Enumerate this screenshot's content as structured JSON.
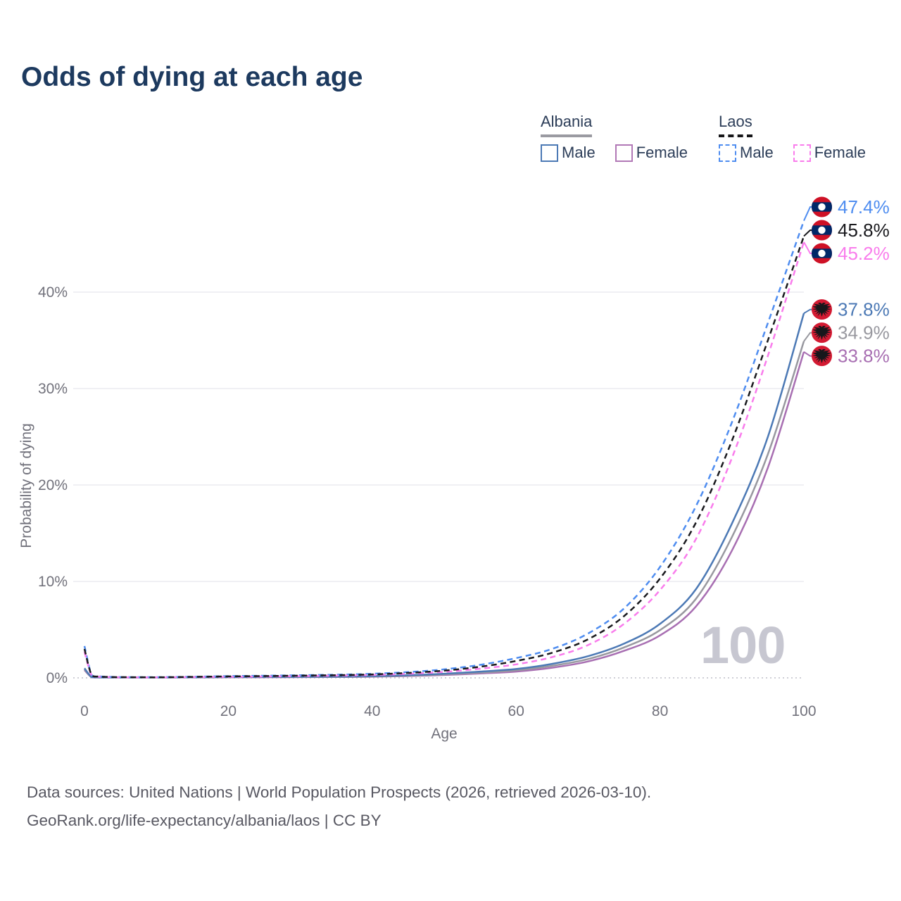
{
  "title": "Odds of dying at each age",
  "watermark": "100",
  "legend": {
    "groups": [
      {
        "name": "Albania",
        "line_style": "solid",
        "underline_color": "#9a9aa1",
        "items": [
          {
            "label": "Male",
            "color": "#4c79b5",
            "dashed": false
          },
          {
            "label": "Female",
            "color": "#b178b6",
            "dashed": false
          }
        ]
      },
      {
        "name": "Laos",
        "line_style": "dashed",
        "underline_color": "#161619",
        "items": [
          {
            "label": "Male",
            "color": "#4f8df0",
            "dashed": true
          },
          {
            "label": "Female",
            "color": "#f97cec",
            "dashed": true
          }
        ]
      }
    ]
  },
  "footer": {
    "line1": "Data sources: United Nations | World Population Prospects (2026, retrieved 2026-03-10).",
    "line2": "GeoRank.org/life-expectancy/albania/laos | CC BY"
  },
  "flag_colors": {
    "laos_red": "#ce1126",
    "laos_blue": "#002868",
    "albania_red": "#d31a32",
    "eagle_black": "#17171b",
    "white": "#ffffff"
  },
  "chart_data": {
    "type": "line",
    "title": "Odds of dying at each age",
    "xlabel": "Age",
    "ylabel": "Probability of dying",
    "x_ticks": [
      0,
      20,
      40,
      60,
      80,
      100
    ],
    "y_ticks_pct": [
      0,
      10,
      20,
      30,
      40
    ],
    "xlim": [
      0,
      100
    ],
    "ylim_pct": [
      0,
      48
    ],
    "grid": "horizontal",
    "legend_position": "top-right",
    "ages": [
      0,
      1,
      2,
      3,
      5,
      10,
      15,
      20,
      25,
      30,
      35,
      40,
      45,
      50,
      55,
      60,
      65,
      70,
      75,
      80,
      85,
      90,
      95,
      100
    ],
    "series": [
      {
        "id": "albania-female",
        "country": "Albania",
        "sex": "Female",
        "color": "#a86fb2",
        "dashed": false,
        "flag": "albania",
        "end_label": "33.8%",
        "end_value_pct": 33.8,
        "values_pct": [
          0.8,
          0.06,
          0.035,
          0.03,
          0.022,
          0.02,
          0.04,
          0.05,
          0.06,
          0.07,
          0.09,
          0.12,
          0.19,
          0.3,
          0.46,
          0.65,
          1.05,
          1.7,
          2.8,
          4.4,
          7.4,
          13.2,
          21.8,
          33.8
        ]
      },
      {
        "id": "albania-total",
        "country": "Albania",
        "sex": "Both sexes",
        "color": "#98989f",
        "dashed": false,
        "flag": "albania",
        "end_label": "34.9%",
        "end_value_pct": 34.9,
        "values_pct": [
          0.9,
          0.07,
          0.04,
          0.035,
          0.027,
          0.025,
          0.05,
          0.07,
          0.08,
          0.09,
          0.11,
          0.15,
          0.23,
          0.36,
          0.55,
          0.78,
          1.25,
          1.95,
          3.15,
          4.95,
          8.2,
          14.6,
          23.2,
          34.9
        ]
      },
      {
        "id": "albania-male",
        "country": "Albania",
        "sex": "Male",
        "color": "#4c79b5",
        "dashed": false,
        "flag": "albania",
        "end_label": "37.8%",
        "end_value_pct": 37.8,
        "values_pct": [
          1.0,
          0.08,
          0.05,
          0.04,
          0.03,
          0.03,
          0.06,
          0.09,
          0.1,
          0.11,
          0.13,
          0.18,
          0.28,
          0.43,
          0.65,
          0.92,
          1.45,
          2.25,
          3.55,
          5.6,
          9.2,
          16.0,
          25.0,
          37.8
        ]
      },
      {
        "id": "laos-male",
        "country": "Laos",
        "sex": "Male",
        "color": "#4f8df0",
        "dashed": true,
        "flag": "laos",
        "end_label": "47.4%",
        "end_value_pct": 47.4,
        "values_pct": [
          3.3,
          0.3,
          0.16,
          0.12,
          0.08,
          0.07,
          0.12,
          0.18,
          0.22,
          0.27,
          0.33,
          0.42,
          0.6,
          0.88,
          1.35,
          2.05,
          3.0,
          4.6,
          7.2,
          11.5,
          17.8,
          26.5,
          36.8,
          47.4
        ]
      },
      {
        "id": "laos-female",
        "country": "Laos",
        "sex": "Female",
        "color": "#f97cec",
        "dashed": true,
        "flag": "laos",
        "end_label": "45.2%",
        "end_value_pct": 45.2,
        "values_pct": [
          2.7,
          0.24,
          0.12,
          0.09,
          0.06,
          0.05,
          0.08,
          0.11,
          0.14,
          0.18,
          0.23,
          0.3,
          0.42,
          0.62,
          0.95,
          1.4,
          2.15,
          3.4,
          5.6,
          9.1,
          14.4,
          22.8,
          33.4,
          45.2
        ]
      },
      {
        "id": "laos-total",
        "country": "Laos",
        "sex": "Both sexes",
        "color": "#1a1a1e",
        "dashed": true,
        "flag": "laos",
        "end_label": "45.8%",
        "end_value_pct": 45.8,
        "values_pct": [
          3.0,
          0.27,
          0.14,
          0.1,
          0.07,
          0.06,
          0.1,
          0.15,
          0.19,
          0.23,
          0.28,
          0.36,
          0.51,
          0.75,
          1.15,
          1.75,
          2.6,
          4.0,
          6.4,
          10.3,
          16.1,
          24.6,
          35.0,
          45.8
        ]
      }
    ]
  }
}
